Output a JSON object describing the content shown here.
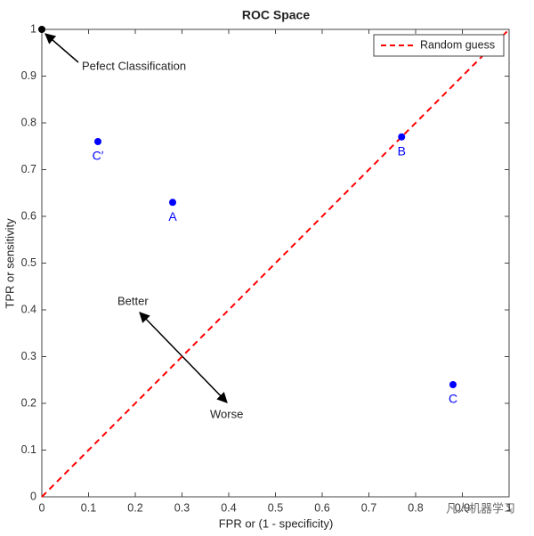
{
  "chart_data": {
    "type": "scatter",
    "title": "ROC Space",
    "x_label": "FPR or (1 - specificity)",
    "y_label": "TPR or sensitivity",
    "xlim": [
      0,
      1
    ],
    "ylim": [
      0,
      1
    ],
    "xticks": [
      0,
      0.1,
      0.2,
      0.3,
      0.4,
      0.5,
      0.6,
      0.7,
      0.8,
      0.9,
      1
    ],
    "yticks": [
      0,
      0.1,
      0.2,
      0.3,
      0.4,
      0.5,
      0.6,
      0.7,
      0.8,
      0.9,
      1
    ],
    "points": {
      "labels": [
        "C′",
        "A",
        "B",
        "C"
      ],
      "x": [
        0.12,
        0.28,
        0.77,
        0.88
      ],
      "y": [
        0.76,
        0.63,
        0.77,
        0.24
      ],
      "color": "#0000ff"
    },
    "perfect_point": {
      "x": 0,
      "y": 1,
      "color": "#000000"
    },
    "series": [
      {
        "name": "Random guess",
        "color": "#ff0000",
        "x": [
          0,
          1
        ],
        "values": [
          0,
          1
        ]
      }
    ],
    "legend": "upper right",
    "annotations": {
      "perfect": "Pefect Classification",
      "better": "Better",
      "worse": "Worse"
    },
    "watermark": "凡人机器学习"
  }
}
